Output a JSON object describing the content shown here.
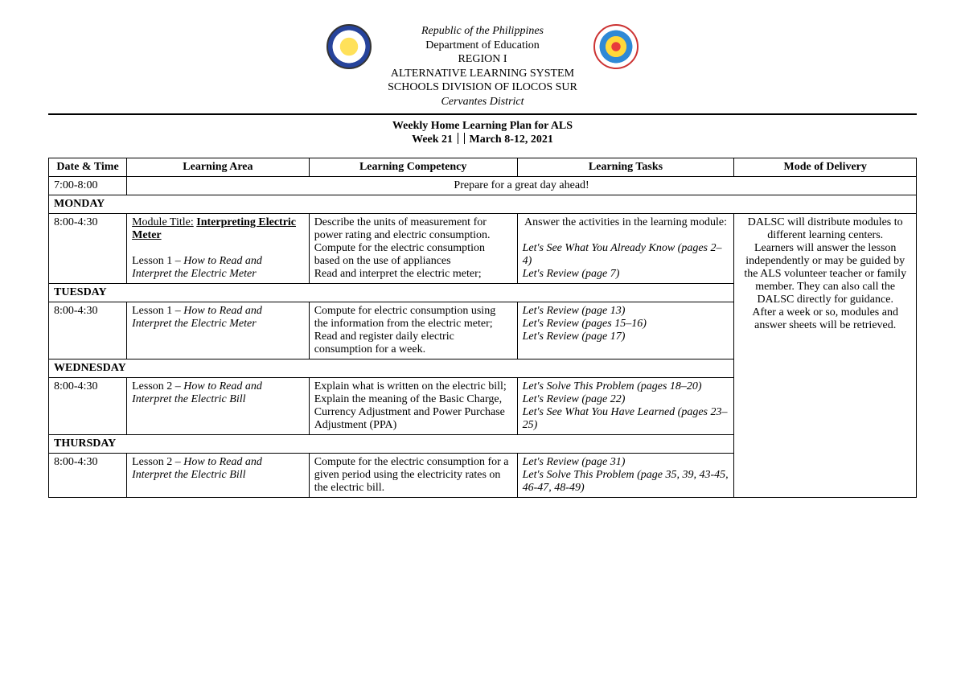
{
  "header": {
    "line1": "Republic of the Philippines",
    "line2": "Department of Education",
    "line3": "REGION I",
    "line4": "ALTERNATIVE LEARNING SYSTEM",
    "line5": "SCHOOLS DIVISION OF ILOCOS SUR",
    "line6": "Cervantes District"
  },
  "title": {
    "main": "Weekly Home Learning Plan for ALS",
    "week": "Week 21",
    "dates": "March 8-12, 2021"
  },
  "columns": {
    "datetime": "Date & Time",
    "area": "Learning Area",
    "competency": "Learning Competency",
    "tasks": "Learning Tasks",
    "mode": "Mode of Delivery"
  },
  "prep": {
    "time": "7:00-8:00",
    "text": "Prepare for a great day ahead!"
  },
  "days": {
    "mon": "MONDAY",
    "tue": "TUESDAY",
    "wed": "WEDNESDAY",
    "thu": "THURSDAY"
  },
  "mode_text": "DALSC will distribute modules to different learning centers.\nLearners will answer the lesson independently or may be guided by the ALS volunteer teacher or family member. They can also call the DALSC directly for guidance.\nAfter a week or so, modules and answer sheets will be retrieved.",
  "mon": {
    "time": "8:00-4:30",
    "module_label": "Module Title:",
    "module_title": "Interpreting Electric Meter",
    "lesson_pre": "Lesson 1 – ",
    "lesson_title": "How to Read and Interpret the Electric Meter",
    "comp1": "Describe the units of measurement for power rating and electric consumption.",
    "comp2": "Compute for the electric consumption based on the use of appliances",
    "comp3": "Read and interpret the electric meter;",
    "task_intro": "Answer the activities in the learning module:",
    "task1": "Let's See What You Already Know (pages 2–4)",
    "task2": "Let's Review (page 7)"
  },
  "tue": {
    "time": "8:00-4:30",
    "lesson_pre": "Lesson 1 – ",
    "lesson_title": "How to Read and Interpret the Electric Meter",
    "comp1": "Compute for electric consumption using the information from the electric meter;",
    "comp2": "Read and register daily electric consumption for a week.",
    "task1": "Let's Review (page 13)",
    "task2": "Let's Review (pages 15–16)",
    "task3": "Let's Review (page 17)"
  },
  "wed": {
    "time": "8:00-4:30",
    "lesson_pre": "Lesson 2 – ",
    "lesson_title": "How to Read and Interpret the Electric Bill",
    "comp1": "Explain what is written on the electric bill;",
    "comp2": "Explain the meaning of the Basic Charge, Currency Adjustment and Power Purchase Adjustment (PPA)",
    "task1": "Let's Solve This Problem (pages 18–20)",
    "task2": "Let's Review (page 22)",
    "task3": "Let's See What You Have Learned (pages 23–25)"
  },
  "thu": {
    "time": "8:00-4:30",
    "lesson_pre": "Lesson 2 – ",
    "lesson_title": "How to Read and Interpret the Electric Bill",
    "comp1": "Compute for the electric consumption for a given period using the electricity rates on the electric bill.",
    "task1": "Let's Review (page 31)",
    "task2": "Let's Solve This Problem (page 35, 39, 43-45, 46-47, 48-49)"
  }
}
